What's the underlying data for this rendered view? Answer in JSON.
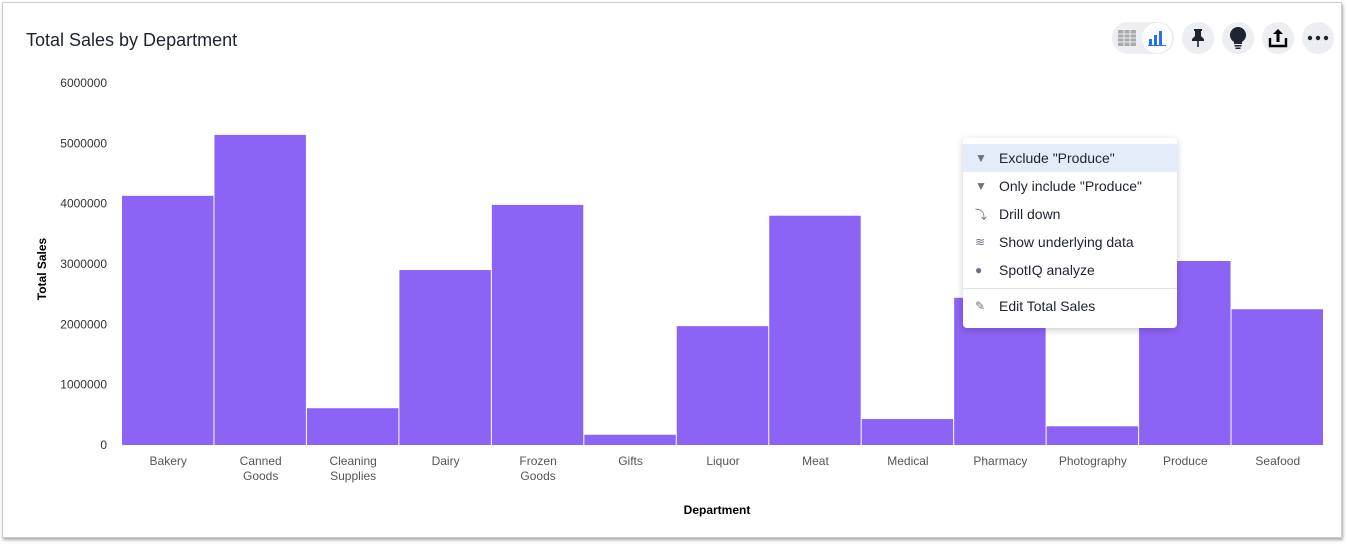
{
  "chart_data": {
    "type": "bar",
    "title": "Total Sales by Department",
    "xlabel": "Department",
    "ylabel": "Total Sales",
    "categories": [
      "Bakery",
      "Canned Goods",
      "Cleaning Supplies",
      "Dairy",
      "Frozen Goods",
      "Gifts",
      "Liquor",
      "Meat",
      "Medical",
      "Pharmacy",
      "Photography",
      "Produce",
      "Seafood"
    ],
    "values": [
      4130000,
      5140000,
      610000,
      2900000,
      3980000,
      170000,
      1970000,
      3800000,
      430000,
      2440000,
      310000,
      3050000,
      2250000
    ],
    "ylim": [
      0,
      6000000
    ],
    "yticks": [
      "0",
      "1000000",
      "2000000",
      "3000000",
      "4000000",
      "5000000",
      "6000000"
    ],
    "grid": false,
    "bar_color": "#8c64f5"
  },
  "toolbar": {
    "icons": [
      "table-icon",
      "bar-chart-icon",
      "pin-icon",
      "lightbulb-icon",
      "share-icon",
      "more-icon"
    ]
  },
  "context_menu": {
    "items": [
      {
        "label": "Exclude \"Produce\"",
        "icon": "filter-icon"
      },
      {
        "label": "Only include \"Produce\"",
        "icon": "filter-icon"
      },
      {
        "label": "Drill down",
        "icon": "drill-down-icon"
      },
      {
        "label": "Show underlying data",
        "icon": "layers-icon"
      },
      {
        "label": "SpotIQ analyze",
        "icon": "lightbulb-icon"
      },
      {
        "label": "Edit Total Sales",
        "icon": "pencil-icon"
      }
    ]
  }
}
